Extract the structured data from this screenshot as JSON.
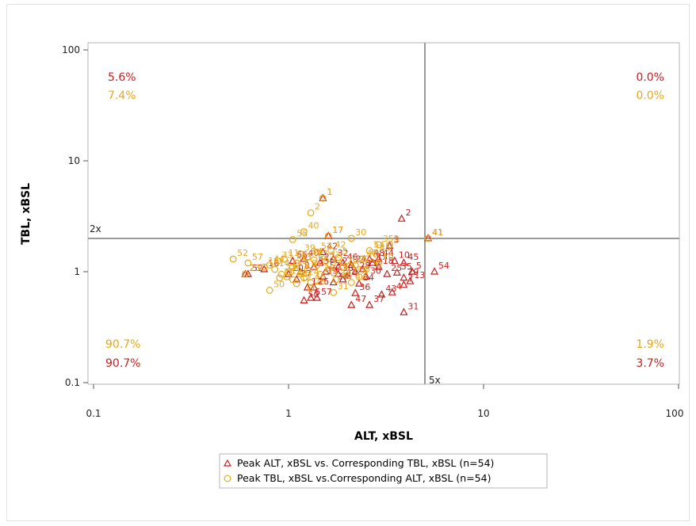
{
  "chart_data": {
    "type": "scatter",
    "xlabel": "ALT, xBSL",
    "ylabel": "TBL, xBSL",
    "x_scale": "log",
    "y_scale": "log",
    "xlim": [
      0.1,
      100
    ],
    "ylim": [
      0.1,
      100
    ],
    "x_ticks": [
      "0.1",
      "1",
      "10",
      "100"
    ],
    "y_ticks": [
      "0.1",
      "1",
      "10",
      "100"
    ],
    "reference_lines": [
      {
        "axis": "y",
        "value": 2,
        "label": "2x"
      },
      {
        "axis": "x",
        "value": 5,
        "label": "5x"
      }
    ],
    "colors": {
      "triangle": "#c81e1e",
      "circle": "#e6a817"
    },
    "quadrant_labels": {
      "upper_left": [
        "5.6%",
        "7.4%"
      ],
      "upper_right": [
        "0.0%",
        "0.0%"
      ],
      "lower_left": [
        "90.7%",
        "90.7%"
      ],
      "lower_right": [
        "1.9%",
        "3.7%"
      ]
    },
    "legend": {
      "placement": "bottom",
      "entries": [
        "Peak ALT, xBSL vs. Corresponding TBL, xBSL (n=54)",
        "Peak TBL, xBSL vs.Corresponding ALT, xBSL (n=54)"
      ]
    },
    "series": [
      {
        "name": "Peak ALT, xBSL vs. Corresponding TBL, xBSL (n=54)",
        "marker": "triangle",
        "points": [
          {
            "id": "1",
            "x": 1.5,
            "y": 4.6
          },
          {
            "id": "2",
            "x": 3.8,
            "y": 3.0
          },
          {
            "id": "3",
            "x": 3.3,
            "y": 1.7
          },
          {
            "id": "41",
            "x": 5.2,
            "y": 2.0
          },
          {
            "id": "54",
            "x": 5.6,
            "y": 1.0
          },
          {
            "id": "5",
            "x": 4.3,
            "y": 1.0
          },
          {
            "id": "13",
            "x": 4.2,
            "y": 0.82
          },
          {
            "id": "45",
            "x": 3.9,
            "y": 1.2
          },
          {
            "id": "10",
            "x": 3.5,
            "y": 1.25
          },
          {
            "id": "29",
            "x": 3.9,
            "y": 0.88
          },
          {
            "id": "7",
            "x": 3.9,
            "y": 0.76
          },
          {
            "id": "4",
            "x": 3.4,
            "y": 0.65
          },
          {
            "id": "43",
            "x": 3.0,
            "y": 0.62
          },
          {
            "id": "31",
            "x": 3.9,
            "y": 0.43
          },
          {
            "id": "37",
            "x": 2.6,
            "y": 0.5
          },
          {
            "id": "47",
            "x": 2.1,
            "y": 0.5
          },
          {
            "id": "36",
            "x": 2.2,
            "y": 0.64
          },
          {
            "id": "17",
            "x": 1.6,
            "y": 2.1
          },
          {
            "id": "42",
            "x": 1.5,
            "y": 1.5
          },
          {
            "id": "32",
            "x": 1.7,
            "y": 1.3
          },
          {
            "id": "24",
            "x": 2.1,
            "y": 1.15
          },
          {
            "id": "38",
            "x": 1.8,
            "y": 0.95
          },
          {
            "id": "14",
            "x": 1.9,
            "y": 0.85
          },
          {
            "id": "26",
            "x": 1.35,
            "y": 0.72
          },
          {
            "id": "12",
            "x": 1.25,
            "y": 0.72
          },
          {
            "id": "6",
            "x": 1.3,
            "y": 0.58
          },
          {
            "id": "57",
            "x": 1.4,
            "y": 0.58
          },
          {
            "id": "50",
            "x": 1.2,
            "y": 0.55
          },
          {
            "id": "52",
            "x": 0.62,
            "y": 0.95
          },
          {
            "id": "23",
            "x": 0.6,
            "y": 0.95
          },
          {
            "id": "16",
            "x": 0.75,
            "y": 1.05
          },
          {
            "id": "8",
            "x": 1.15,
            "y": 1.0
          },
          {
            "id": "9",
            "x": 2.0,
            "y": 0.92
          },
          {
            "id": "11",
            "x": 2.4,
            "y": 1.05
          },
          {
            "id": "15",
            "x": 2.7,
            "y": 1.2
          },
          {
            "id": "18",
            "x": 2.9,
            "y": 1.1
          },
          {
            "id": "19",
            "x": 1.5,
            "y": 0.9
          },
          {
            "id": "20",
            "x": 1.0,
            "y": 0.95
          },
          {
            "id": "21",
            "x": 1.8,
            "y": 1.1
          },
          {
            "id": "22",
            "x": 1.45,
            "y": 1.2
          },
          {
            "id": "25",
            "x": 3.2,
            "y": 0.95
          },
          {
            "id": "27",
            "x": 1.1,
            "y": 0.85
          },
          {
            "id": "28",
            "x": 2.2,
            "y": 1.0
          },
          {
            "id": "30",
            "x": 2.5,
            "y": 0.9
          },
          {
            "id": "33",
            "x": 1.35,
            "y": 1.1
          },
          {
            "id": "34",
            "x": 2.3,
            "y": 0.78
          },
          {
            "id": "35",
            "x": 3.6,
            "y": 0.98
          },
          {
            "id": "39",
            "x": 1.7,
            "y": 0.8
          },
          {
            "id": "40",
            "x": 1.2,
            "y": 1.3
          },
          {
            "id": "44",
            "x": 2.9,
            "y": 1.3
          },
          {
            "id": "46",
            "x": 1.9,
            "y": 1.2
          },
          {
            "id": "48",
            "x": 2.6,
            "y": 1.3
          },
          {
            "id": "53",
            "x": 1.55,
            "y": 1.0
          },
          {
            "id": "55",
            "x": 1.05,
            "y": 1.25
          }
        ]
      },
      {
        "name": "Peak TBL, xBSL vs.Corresponding ALT, xBSL (n=54)",
        "marker": "circle",
        "points": [
          {
            "id": "1",
            "x": 1.5,
            "y": 4.6
          },
          {
            "id": "2",
            "x": 1.3,
            "y": 3.4
          },
          {
            "id": "40",
            "x": 1.2,
            "y": 2.3
          },
          {
            "id": "17",
            "x": 1.6,
            "y": 2.1
          },
          {
            "id": "30",
            "x": 2.1,
            "y": 2.0
          },
          {
            "id": "35",
            "x": 2.9,
            "y": 1.75
          },
          {
            "id": "3",
            "x": 3.3,
            "y": 1.75
          },
          {
            "id": "41",
            "x": 5.2,
            "y": 2.0
          },
          {
            "id": "55",
            "x": 1.05,
            "y": 1.95
          },
          {
            "id": "52",
            "x": 0.52,
            "y": 1.3
          },
          {
            "id": "57",
            "x": 0.62,
            "y": 1.2
          },
          {
            "id": "23",
            "x": 0.6,
            "y": 0.95
          },
          {
            "id": "20",
            "x": 0.9,
            "y": 0.88
          },
          {
            "id": "50",
            "x": 0.8,
            "y": 0.68
          },
          {
            "id": "4",
            "x": 2.3,
            "y": 0.9
          },
          {
            "id": "31",
            "x": 1.7,
            "y": 0.65
          },
          {
            "id": "38",
            "x": 2.0,
            "y": 0.92
          },
          {
            "id": "10",
            "x": 2.9,
            "y": 1.2
          },
          {
            "id": "26",
            "x": 1.3,
            "y": 0.72
          },
          {
            "id": "12",
            "x": 1.1,
            "y": 0.78
          },
          {
            "id": "45",
            "x": 2.8,
            "y": 1.45
          },
          {
            "id": "16",
            "x": 0.75,
            "y": 1.1
          },
          {
            "id": "5",
            "x": 1.8,
            "y": 1.35
          },
          {
            "id": "6",
            "x": 1.0,
            "y": 1.0
          },
          {
            "id": "7",
            "x": 1.15,
            "y": 0.95
          },
          {
            "id": "8",
            "x": 1.25,
            "y": 1.05
          },
          {
            "id": "9",
            "x": 1.4,
            "y": 1.15
          },
          {
            "id": "11",
            "x": 0.95,
            "y": 1.3
          },
          {
            "id": "13",
            "x": 1.1,
            "y": 1.2
          },
          {
            "id": "14",
            "x": 0.85,
            "y": 1.05
          },
          {
            "id": "15",
            "x": 1.6,
            "y": 1.05
          },
          {
            "id": "18",
            "x": 1.7,
            "y": 0.98
          },
          {
            "id": "19",
            "x": 0.98,
            "y": 0.9
          },
          {
            "id": "21",
            "x": 1.35,
            "y": 1.28
          },
          {
            "id": "22",
            "x": 2.2,
            "y": 1.15
          },
          {
            "id": "24",
            "x": 1.2,
            "y": 0.88
          },
          {
            "id": "25",
            "x": 1.05,
            "y": 1.1
          },
          {
            "id": "27",
            "x": 0.92,
            "y": 0.95
          },
          {
            "id": "28",
            "x": 1.45,
            "y": 0.95
          },
          {
            "id": "29",
            "x": 1.9,
            "y": 1.1
          },
          {
            "id": "32",
            "x": 1.55,
            "y": 1.25
          },
          {
            "id": "33",
            "x": 0.88,
            "y": 1.25
          },
          {
            "id": "34",
            "x": 1.25,
            "y": 1.35
          },
          {
            "id": "36",
            "x": 2.5,
            "y": 1.05
          },
          {
            "id": "37",
            "x": 1.75,
            "y": 0.85
          },
          {
            "id": "39",
            "x": 1.15,
            "y": 1.45
          },
          {
            "id": "42",
            "x": 1.65,
            "y": 1.55
          },
          {
            "id": "43",
            "x": 2.1,
            "y": 0.8
          },
          {
            "id": "44",
            "x": 0.8,
            "y": 1.15
          },
          {
            "id": "46",
            "x": 1.3,
            "y": 0.8
          },
          {
            "id": "47",
            "x": 2.4,
            "y": 1.3
          },
          {
            "id": "48",
            "x": 1.05,
            "y": 0.85
          },
          {
            "id": "53",
            "x": 1.4,
            "y": 1.5
          },
          {
            "id": "54",
            "x": 2.6,
            "y": 1.55
          }
        ]
      }
    ]
  }
}
